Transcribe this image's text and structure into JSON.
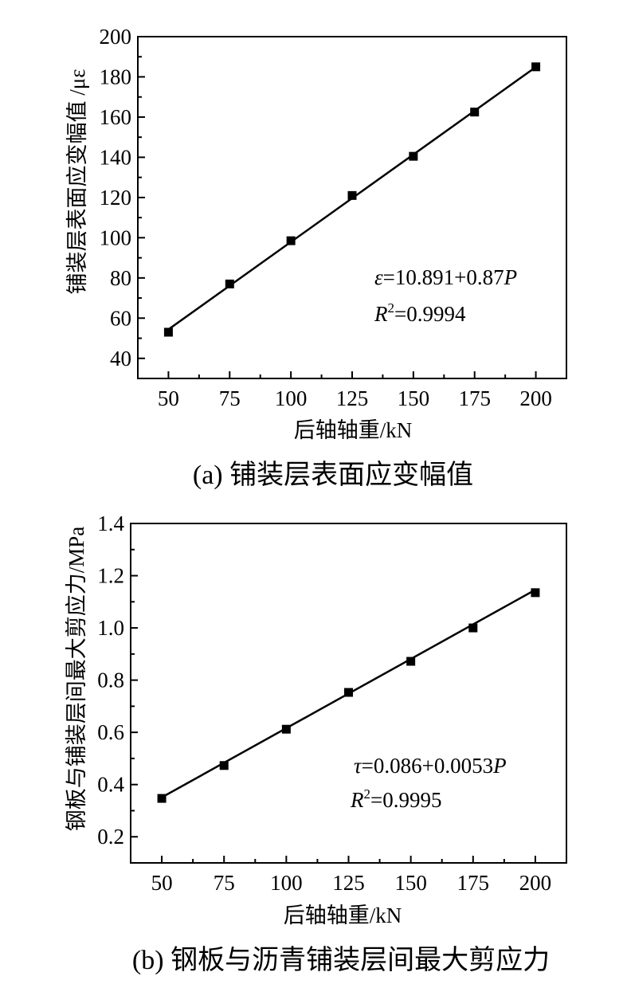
{
  "chart_data": [
    {
      "type": "scatter",
      "caption": "(a) 铺装层表面应变幅值",
      "xlabel": "后轴轴重/kN",
      "ylabel": "铺装层表面应变幅值 /με",
      "xlim": [
        37.5,
        212.5
      ],
      "ylim": [
        30,
        200
      ],
      "xticks": [
        50,
        75,
        100,
        125,
        150,
        175,
        200
      ],
      "yticks": [
        40,
        60,
        80,
        100,
        120,
        140,
        160,
        180,
        200
      ],
      "x": [
        50,
        75,
        100,
        125,
        150,
        175,
        200
      ],
      "y": [
        53,
        77,
        98.5,
        121,
        140.5,
        162.5,
        185
      ],
      "fit": {
        "intercept": 10.891,
        "slope": 0.87
      },
      "equation": {
        "var": "ε",
        "rhs": "=10.891+0.87",
        "p": "P",
        "r": "R",
        "sup": "2",
        "r2_rhs": "=0.9994"
      },
      "grid": false,
      "marker": "square"
    },
    {
      "type": "scatter",
      "caption": "(b) 钢板与沥青铺装层间最大剪应力",
      "xlabel": "后轴轴重/kN",
      "ylabel": "钢板与铺装层间最大剪应力/MPa",
      "xlim": [
        37.5,
        212.5
      ],
      "ylim": [
        0.1,
        1.4
      ],
      "xticks": [
        50,
        75,
        100,
        125,
        150,
        175,
        200
      ],
      "yticks": [
        "0.2",
        "0.4",
        "0.6",
        "0.8",
        "1.0",
        "1.2",
        "1.4"
      ],
      "x": [
        50,
        75,
        100,
        125,
        150,
        175,
        200
      ],
      "y": [
        0.347,
        0.473,
        0.612,
        0.753,
        0.872,
        1.0,
        1.135
      ],
      "fit": {
        "intercept": 0.086,
        "slope": 0.0053
      },
      "equation": {
        "var": "τ",
        "rhs": "=0.086+0.0053",
        "p": "P",
        "r": "R",
        "sup": "2",
        "r2_rhs": "=0.9995"
      },
      "grid": false,
      "marker": "square"
    }
  ]
}
